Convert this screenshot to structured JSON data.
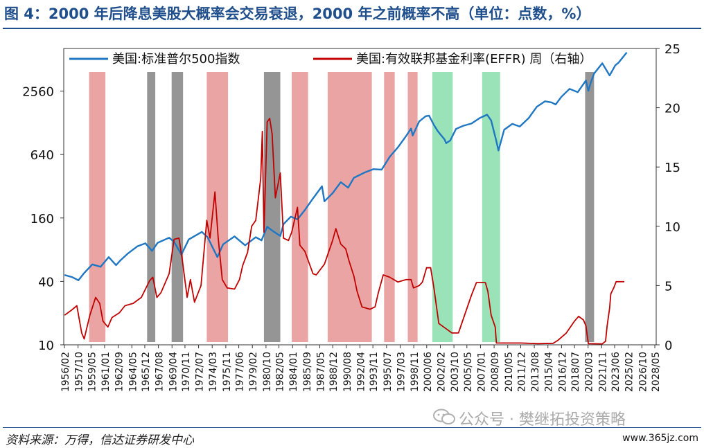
{
  "header": {
    "title": "图 4：2000 年后降息美股大概率会交易衰退，2000 年之前概率不高（单位：点数，%）"
  },
  "footer": {
    "source": "资料来源：万得，信达证券研发中心",
    "watermark": "公众号 · 樊继拓投资策略",
    "site": "www.365jz.com"
  },
  "chart_data": {
    "type": "line",
    "legend_placement": "top",
    "series": [
      {
        "name": "美国:标准普尔500指数",
        "axis": "left",
        "color": "#1f77c4",
        "points": [
          [
            1956.1,
            46
          ],
          [
            1957.0,
            44
          ],
          [
            1957.8,
            41
          ],
          [
            1958.5,
            48
          ],
          [
            1959.5,
            58
          ],
          [
            1960.5,
            55
          ],
          [
            1961.5,
            68
          ],
          [
            1962.4,
            57
          ],
          [
            1962.9,
            63
          ],
          [
            1963.8,
            73
          ],
          [
            1965.0,
            86
          ],
          [
            1966.0,
            92
          ],
          [
            1966.8,
            78
          ],
          [
            1967.5,
            93
          ],
          [
            1968.9,
            104
          ],
          [
            1969.5,
            95
          ],
          [
            1970.4,
            72
          ],
          [
            1971.3,
            100
          ],
          [
            1972.9,
            118
          ],
          [
            1973.6,
            105
          ],
          [
            1974.8,
            68
          ],
          [
            1975.5,
            90
          ],
          [
            1976.9,
            107
          ],
          [
            1978.2,
            88
          ],
          [
            1979.5,
            105
          ],
          [
            1980.2,
            98
          ],
          [
            1980.9,
            132
          ],
          [
            1981.6,
            120
          ],
          [
            1982.5,
            108
          ],
          [
            1982.9,
            140
          ],
          [
            1983.8,
            165
          ],
          [
            1984.6,
            155
          ],
          [
            1985.5,
            190
          ],
          [
            1986.5,
            245
          ],
          [
            1987.6,
            320
          ],
          [
            1987.9,
            230
          ],
          [
            1988.9,
            275
          ],
          [
            1989.9,
            350
          ],
          [
            1990.8,
            310
          ],
          [
            1991.5,
            385
          ],
          [
            1992.9,
            435
          ],
          [
            1993.9,
            465
          ],
          [
            1994.9,
            460
          ],
          [
            1995.9,
            610
          ],
          [
            1996.9,
            750
          ],
          [
            1997.9,
            960
          ],
          [
            1998.5,
            1130
          ],
          [
            1998.7,
            970
          ],
          [
            1999.5,
            1320
          ],
          [
            2000.3,
            1480
          ],
          [
            2000.7,
            1500
          ],
          [
            2001.3,
            1220
          ],
          [
            2001.8,
            1060
          ],
          [
            2002.6,
            890
          ],
          [
            2002.8,
            820
          ],
          [
            2003.3,
            870
          ],
          [
            2004.0,
            1120
          ],
          [
            2004.9,
            1200
          ],
          [
            2005.9,
            1260
          ],
          [
            2006.9,
            1420
          ],
          [
            2007.8,
            1530
          ],
          [
            2008.3,
            1350
          ],
          [
            2008.9,
            880
          ],
          [
            2009.2,
            700
          ],
          [
            2009.9,
            1100
          ],
          [
            2010.9,
            1250
          ],
          [
            2011.8,
            1180
          ],
          [
            2012.9,
            1420
          ],
          [
            2013.9,
            1820
          ],
          [
            2014.9,
            2050
          ],
          [
            2015.7,
            2000
          ],
          [
            2016.2,
            1910
          ],
          [
            2016.9,
            2260
          ],
          [
            2017.9,
            2690
          ],
          [
            2018.9,
            2500
          ],
          [
            2019.9,
            3230
          ],
          [
            2020.2,
            2580
          ],
          [
            2020.5,
            3100
          ],
          [
            2020.9,
            3750
          ],
          [
            2021.9,
            4700
          ],
          [
            2022.8,
            3600
          ],
          [
            2023.5,
            4500
          ],
          [
            2023.9,
            4770
          ],
          [
            2024.5,
            5450
          ],
          [
            2024.9,
            5950
          ]
        ]
      },
      {
        "name": "美国:有效联邦基金利率(EFFR) 周（右轴）",
        "axis": "right",
        "color": "#c00000",
        "points": [
          [
            1956.1,
            2.5
          ],
          [
            1956.9,
            2.9
          ],
          [
            1957.6,
            3.3
          ],
          [
            1958.2,
            1.0
          ],
          [
            1958.5,
            0.5
          ],
          [
            1959.2,
            2.5
          ],
          [
            1959.9,
            4.0
          ],
          [
            1960.4,
            3.5
          ],
          [
            1960.8,
            2.0
          ],
          [
            1961.4,
            1.5
          ],
          [
            1961.9,
            2.3
          ],
          [
            1962.8,
            2.7
          ],
          [
            1963.5,
            3.3
          ],
          [
            1964.5,
            3.5
          ],
          [
            1965.5,
            4.0
          ],
          [
            1966.5,
            5.4
          ],
          [
            1966.9,
            5.7
          ],
          [
            1967.4,
            4.0
          ],
          [
            1967.9,
            4.4
          ],
          [
            1968.9,
            6.0
          ],
          [
            1969.5,
            8.9
          ],
          [
            1970.1,
            9.0
          ],
          [
            1970.5,
            7.2
          ],
          [
            1971.1,
            4.0
          ],
          [
            1971.5,
            5.5
          ],
          [
            1972.0,
            3.6
          ],
          [
            1972.8,
            5.0
          ],
          [
            1973.5,
            10.5
          ],
          [
            1973.9,
            9.0
          ],
          [
            1974.5,
            12.9
          ],
          [
            1974.9,
            9.0
          ],
          [
            1975.4,
            5.5
          ],
          [
            1976.0,
            4.8
          ],
          [
            1976.9,
            4.7
          ],
          [
            1977.5,
            5.5
          ],
          [
            1977.9,
            6.7
          ],
          [
            1978.5,
            7.8
          ],
          [
            1979.0,
            10.0
          ],
          [
            1979.5,
            10.5
          ],
          [
            1980.1,
            14.0
          ],
          [
            1980.3,
            18.0
          ],
          [
            1980.5,
            9.5
          ],
          [
            1980.9,
            18.8
          ],
          [
            1981.2,
            19.1
          ],
          [
            1981.5,
            17.8
          ],
          [
            1981.9,
            12.4
          ],
          [
            1982.5,
            14.5
          ],
          [
            1982.9,
            9.0
          ],
          [
            1983.5,
            8.8
          ],
          [
            1983.9,
            9.5
          ],
          [
            1984.6,
            11.6
          ],
          [
            1984.9,
            8.4
          ],
          [
            1985.5,
            7.9
          ],
          [
            1986.5,
            6.0
          ],
          [
            1986.9,
            5.9
          ],
          [
            1987.9,
            6.8
          ],
          [
            1988.9,
            8.8
          ],
          [
            1989.3,
            9.8
          ],
          [
            1989.9,
            8.5
          ],
          [
            1990.5,
            8.1
          ],
          [
            1990.9,
            7.1
          ],
          [
            1991.5,
            5.8
          ],
          [
            1991.9,
            4.5
          ],
          [
            1992.5,
            3.2
          ],
          [
            1993.5,
            3.0
          ],
          [
            1994.1,
            3.2
          ],
          [
            1994.5,
            4.4
          ],
          [
            1995.1,
            5.9
          ],
          [
            1995.9,
            5.7
          ],
          [
            1996.9,
            5.3
          ],
          [
            1997.9,
            5.5
          ],
          [
            1998.5,
            5.5
          ],
          [
            1998.8,
            4.8
          ],
          [
            1999.5,
            5.0
          ],
          [
            1999.9,
            5.3
          ],
          [
            2000.4,
            6.5
          ],
          [
            2000.9,
            6.5
          ],
          [
            2001.3,
            4.8
          ],
          [
            2001.9,
            1.8
          ],
          [
            2002.9,
            1.3
          ],
          [
            2003.5,
            1.0
          ],
          [
            2004.3,
            1.0
          ],
          [
            2004.9,
            2.2
          ],
          [
            2005.9,
            4.2
          ],
          [
            2006.5,
            5.25
          ],
          [
            2007.6,
            5.25
          ],
          [
            2007.9,
            4.5
          ],
          [
            2008.3,
            2.5
          ],
          [
            2008.8,
            1.5
          ],
          [
            2008.95,
            0.15
          ],
          [
            2010.0,
            0.15
          ],
          [
            2012.0,
            0.15
          ],
          [
            2014.0,
            0.1
          ],
          [
            2015.9,
            0.13
          ],
          [
            2016.5,
            0.4
          ],
          [
            2017.5,
            1.0
          ],
          [
            2018.5,
            2.0
          ],
          [
            2019.0,
            2.4
          ],
          [
            2019.6,
            2.1
          ],
          [
            2019.9,
            1.6
          ],
          [
            2020.2,
            0.1
          ],
          [
            2021.9,
            0.08
          ],
          [
            2022.3,
            0.3
          ],
          [
            2022.5,
            1.6
          ],
          [
            2022.8,
            3.1
          ],
          [
            2022.95,
            4.3
          ],
          [
            2023.3,
            4.8
          ],
          [
            2023.6,
            5.33
          ],
          [
            2024.6,
            5.33
          ]
        ]
      }
    ],
    "y_left": {
      "scale": "log",
      "range": [
        10,
        6500
      ],
      "ticks": [
        10,
        40,
        160,
        640,
        2560
      ]
    },
    "y_right": {
      "range": [
        0,
        25
      ],
      "ticks": [
        0,
        5,
        10,
        15,
        20,
        25
      ]
    },
    "x_range": [
      1956.0,
      2028.5
    ],
    "x_ticks": [
      "1956/02",
      "1957/10",
      "1959/05",
      "1961/01",
      "1962/09",
      "1964/05",
      "1965/12",
      "1967/08",
      "1969/04",
      "1970/11",
      "1972/07",
      "1974/03",
      "1975/11",
      "1977/06",
      "1979/02",
      "1980/10",
      "1982/05",
      "1984/01",
      "1985/09",
      "1987/05",
      "1988/12",
      "1990/08",
      "1992/04",
      "1993/11",
      "1995/07",
      "1997/03",
      "1998/11",
      "2000/06",
      "2002/02",
      "2003/10",
      "2005/05",
      "2007/01",
      "2008/09",
      "2010/05",
      "2011/12",
      "2013/08",
      "2015/04",
      "2016/12",
      "2018/07",
      "2020/03",
      "2021/11",
      "2023/06",
      "2025/02",
      "2026/10",
      "2028/05"
    ],
    "grid": false,
    "highlight_bands": [
      {
        "x0": 1959.1,
        "x1": 1961.1,
        "color": "#e89a9a"
      },
      {
        "x0": 1966.2,
        "x1": 1967.2,
        "color": "#8a8a8a"
      },
      {
        "x0": 1969.2,
        "x1": 1970.6,
        "color": "#8a8a8a"
      },
      {
        "x0": 1973.5,
        "x1": 1976.1,
        "color": "#e89a9a"
      },
      {
        "x0": 1980.5,
        "x1": 1982.5,
        "color": "#8a8a8a"
      },
      {
        "x0": 1983.9,
        "x1": 1985.9,
        "color": "#e89a9a"
      },
      {
        "x0": 1988.3,
        "x1": 1993.7,
        "color": "#e89a9a"
      },
      {
        "x0": 1995.2,
        "x1": 1996.5,
        "color": "#e89a9a"
      },
      {
        "x0": 1998.1,
        "x1": 1999.3,
        "color": "#e89a9a"
      },
      {
        "x0": 2001.1,
        "x1": 2003.6,
        "color": "#8fe0b0"
      },
      {
        "x0": 2007.2,
        "x1": 2009.4,
        "color": "#8fe0b0"
      },
      {
        "x0": 2019.8,
        "x1": 2020.9,
        "color": "#8a8a8a"
      }
    ]
  }
}
